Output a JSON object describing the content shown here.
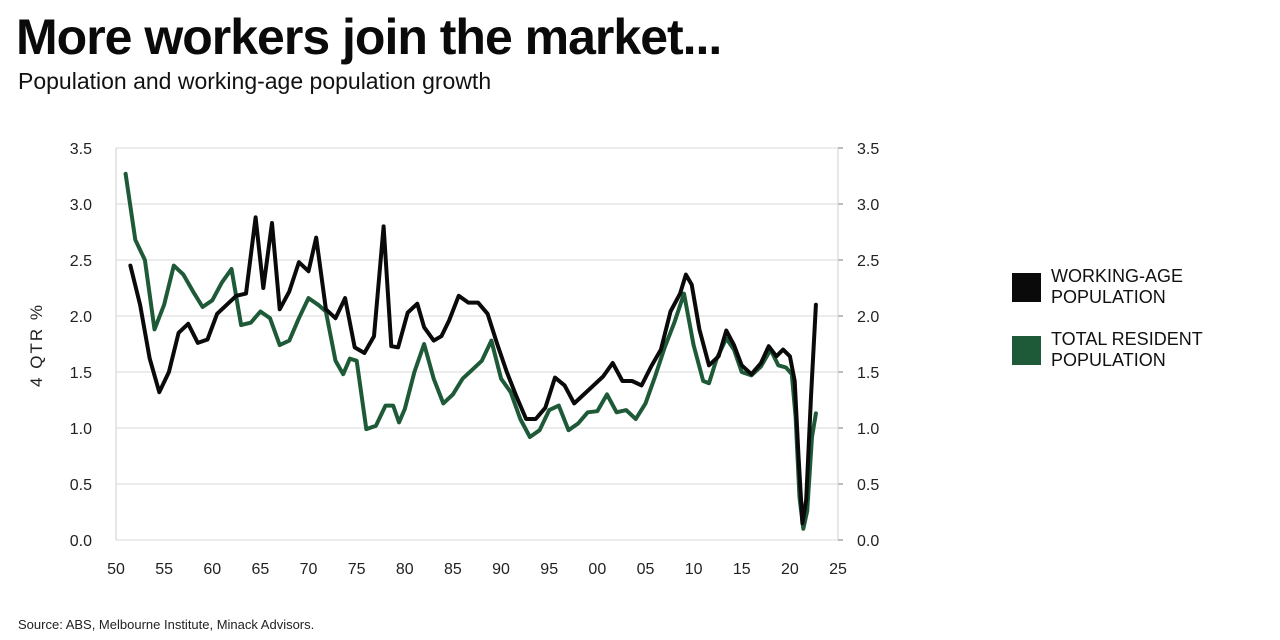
{
  "title": "More workers join the market...",
  "subtitle": "Population and working-age population growth",
  "source": "Source: ABS, Melbourne Institute, Minack Advisors.",
  "colors": {
    "working_age": "#0a0a0a",
    "total_resident": "#1f5a38",
    "grid": "#d9d9d9"
  },
  "chart_data": {
    "type": "line",
    "ylabel": "4 QTR %",
    "xlabel": "",
    "xlim": [
      1950,
      2025
    ],
    "ylim": [
      0,
      3.5
    ],
    "yticks": [
      0.0,
      0.5,
      1.0,
      1.5,
      2.0,
      2.5,
      3.0,
      3.5
    ],
    "ytick_labels": [
      "0.0",
      "0.5",
      "1.0",
      "1.5",
      "2.0",
      "2.5",
      "3.0",
      "3.5"
    ],
    "xticks": [
      1950,
      1955,
      1960,
      1965,
      1970,
      1975,
      1980,
      1985,
      1990,
      1995,
      2000,
      2005,
      2010,
      2015,
      2020,
      2025
    ],
    "xtick_labels": [
      "50",
      "55",
      "60",
      "65",
      "70",
      "75",
      "80",
      "85",
      "90",
      "95",
      "00",
      "05",
      "10",
      "15",
      "20",
      "25"
    ],
    "grid": true,
    "legend_position": "right",
    "series": [
      {
        "name": "WORKING-AGE POPULATION",
        "color": "#0a0a0a",
        "points": [
          [
            1951.5,
            2.45
          ],
          [
            1952.5,
            2.1
          ],
          [
            1953.5,
            1.62
          ],
          [
            1954.5,
            1.32
          ],
          [
            1955.5,
            1.5
          ],
          [
            1956.5,
            1.85
          ],
          [
            1957.5,
            1.93
          ],
          [
            1958.5,
            1.76
          ],
          [
            1959.5,
            1.79
          ],
          [
            1960.5,
            2.02
          ],
          [
            1961.5,
            2.1
          ],
          [
            1962.5,
            2.18
          ],
          [
            1963.5,
            2.2
          ],
          [
            1964.5,
            2.88
          ],
          [
            1965.3,
            2.25
          ],
          [
            1966.2,
            2.83
          ],
          [
            1967.0,
            2.06
          ],
          [
            1968.0,
            2.22
          ],
          [
            1969.0,
            2.48
          ],
          [
            1970.0,
            2.4
          ],
          [
            1970.8,
            2.7
          ],
          [
            1971.8,
            2.06
          ],
          [
            1972.8,
            1.98
          ],
          [
            1973.8,
            2.16
          ],
          [
            1974.8,
            1.72
          ],
          [
            1975.8,
            1.67
          ],
          [
            1976.8,
            1.82
          ],
          [
            1977.8,
            2.8
          ],
          [
            1978.6,
            1.73
          ],
          [
            1979.3,
            1.72
          ],
          [
            1980.3,
            2.03
          ],
          [
            1981.3,
            2.11
          ],
          [
            1982.0,
            1.9
          ],
          [
            1983.0,
            1.78
          ],
          [
            1983.8,
            1.82
          ],
          [
            1984.6,
            1.96
          ],
          [
            1985.6,
            2.18
          ],
          [
            1986.6,
            2.12
          ],
          [
            1987.6,
            2.12
          ],
          [
            1988.6,
            2.02
          ],
          [
            1989.6,
            1.75
          ],
          [
            1990.6,
            1.5
          ],
          [
            1991.6,
            1.28
          ],
          [
            1992.6,
            1.08
          ],
          [
            1993.6,
            1.08
          ],
          [
            1994.6,
            1.18
          ],
          [
            1995.6,
            1.45
          ],
          [
            1996.6,
            1.38
          ],
          [
            1997.6,
            1.22
          ],
          [
            1998.6,
            1.3
          ],
          [
            1999.6,
            1.38
          ],
          [
            2000.6,
            1.46
          ],
          [
            2001.6,
            1.58
          ],
          [
            2002.6,
            1.42
          ],
          [
            2003.6,
            1.42
          ],
          [
            2004.6,
            1.38
          ],
          [
            2005.6,
            1.55
          ],
          [
            2006.6,
            1.7
          ],
          [
            2007.6,
            2.04
          ],
          [
            2008.6,
            2.2
          ],
          [
            2009.2,
            2.37
          ],
          [
            2009.8,
            2.28
          ],
          [
            2010.6,
            1.88
          ],
          [
            2011.6,
            1.56
          ],
          [
            2012.6,
            1.64
          ],
          [
            2013.4,
            1.87
          ],
          [
            2014.2,
            1.74
          ],
          [
            2015.0,
            1.56
          ],
          [
            2016.0,
            1.48
          ],
          [
            2017.0,
            1.58
          ],
          [
            2017.8,
            1.73
          ],
          [
            2018.6,
            1.64
          ],
          [
            2019.3,
            1.7
          ],
          [
            2020.0,
            1.64
          ],
          [
            2020.5,
            1.42
          ],
          [
            2020.9,
            0.75
          ],
          [
            2021.3,
            0.15
          ],
          [
            2021.7,
            0.36
          ],
          [
            2022.2,
            1.28
          ],
          [
            2022.7,
            2.1
          ]
        ]
      },
      {
        "name": "TOTAL RESIDENT POPULATION",
        "color": "#1f5a38",
        "points": [
          [
            1951.0,
            3.27
          ],
          [
            1952.0,
            2.68
          ],
          [
            1953.0,
            2.5
          ],
          [
            1954.0,
            1.88
          ],
          [
            1955.0,
            2.1
          ],
          [
            1956.0,
            2.45
          ],
          [
            1957.0,
            2.37
          ],
          [
            1958.0,
            2.22
          ],
          [
            1959.0,
            2.08
          ],
          [
            1960.0,
            2.14
          ],
          [
            1961.0,
            2.3
          ],
          [
            1962.0,
            2.42
          ],
          [
            1963.0,
            1.92
          ],
          [
            1964.0,
            1.94
          ],
          [
            1965.0,
            2.04
          ],
          [
            1966.0,
            1.98
          ],
          [
            1967.0,
            1.74
          ],
          [
            1968.0,
            1.78
          ],
          [
            1969.0,
            1.98
          ],
          [
            1970.0,
            2.16
          ],
          [
            1971.0,
            2.1
          ],
          [
            1971.8,
            2.04
          ],
          [
            1972.8,
            1.6
          ],
          [
            1973.6,
            1.48
          ],
          [
            1974.3,
            1.62
          ],
          [
            1975.0,
            1.6
          ],
          [
            1976.0,
            0.99
          ],
          [
            1977.0,
            1.02
          ],
          [
            1978.0,
            1.2
          ],
          [
            1978.8,
            1.2
          ],
          [
            1979.4,
            1.05
          ],
          [
            1980.0,
            1.17
          ],
          [
            1981.0,
            1.5
          ],
          [
            1982.0,
            1.75
          ],
          [
            1983.0,
            1.44
          ],
          [
            1984.0,
            1.22
          ],
          [
            1985.0,
            1.3
          ],
          [
            1986.0,
            1.44
          ],
          [
            1987.0,
            1.52
          ],
          [
            1988.0,
            1.6
          ],
          [
            1989.0,
            1.78
          ],
          [
            1990.0,
            1.44
          ],
          [
            1991.0,
            1.32
          ],
          [
            1992.0,
            1.08
          ],
          [
            1993.0,
            0.92
          ],
          [
            1994.0,
            0.98
          ],
          [
            1995.0,
            1.16
          ],
          [
            1996.0,
            1.2
          ],
          [
            1997.0,
            0.98
          ],
          [
            1998.0,
            1.04
          ],
          [
            1999.0,
            1.14
          ],
          [
            2000.0,
            1.15
          ],
          [
            2001.0,
            1.3
          ],
          [
            2002.0,
            1.14
          ],
          [
            2003.0,
            1.16
          ],
          [
            2004.0,
            1.08
          ],
          [
            2005.0,
            1.22
          ],
          [
            2006.0,
            1.46
          ],
          [
            2007.0,
            1.72
          ],
          [
            2008.0,
            1.94
          ],
          [
            2009.0,
            2.2
          ],
          [
            2010.0,
            1.74
          ],
          [
            2011.0,
            1.42
          ],
          [
            2011.6,
            1.4
          ],
          [
            2012.4,
            1.62
          ],
          [
            2013.4,
            1.8
          ],
          [
            2014.2,
            1.7
          ],
          [
            2015.0,
            1.5
          ],
          [
            2016.0,
            1.47
          ],
          [
            2017.0,
            1.55
          ],
          [
            2018.0,
            1.7
          ],
          [
            2018.8,
            1.56
          ],
          [
            2019.6,
            1.54
          ],
          [
            2020.2,
            1.48
          ],
          [
            2020.6,
            1.1
          ],
          [
            2021.0,
            0.38
          ],
          [
            2021.4,
            0.1
          ],
          [
            2021.8,
            0.26
          ],
          [
            2022.3,
            0.92
          ],
          [
            2022.7,
            1.13
          ]
        ]
      }
    ]
  }
}
